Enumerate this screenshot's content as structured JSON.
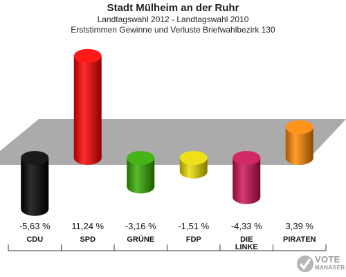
{
  "header": {
    "title": "Stadt Mülheim an der Ruhr",
    "subtitle": "Landtagswahl 2012 - Landtagswahl 2010",
    "description": "Erststimmen Gewinne und Verluste Briefwahlbezirk 130"
  },
  "chart_data": {
    "type": "bar",
    "categories": [
      "CDU",
      "SPD",
      "GRÜNE",
      "FDP",
      "DIE LINKE",
      "PIRATEN"
    ],
    "values": [
      -5.63,
      11.24,
      -3.16,
      -1.51,
      -4.33,
      3.39
    ],
    "value_labels": [
      "-5,63 %",
      "11,24 %",
      "-3,16 %",
      "-1,51 %",
      "-4,33 %",
      "3,39 %"
    ],
    "colors": [
      "#000000",
      "#ff0000",
      "#33aa00",
      "#eedd00",
      "#cc1155",
      "#ff8800"
    ],
    "ylim": [
      -7,
      12
    ],
    "grid": false
  },
  "watermark": {
    "line1": "VOTE",
    "line2": "MANAGER"
  }
}
